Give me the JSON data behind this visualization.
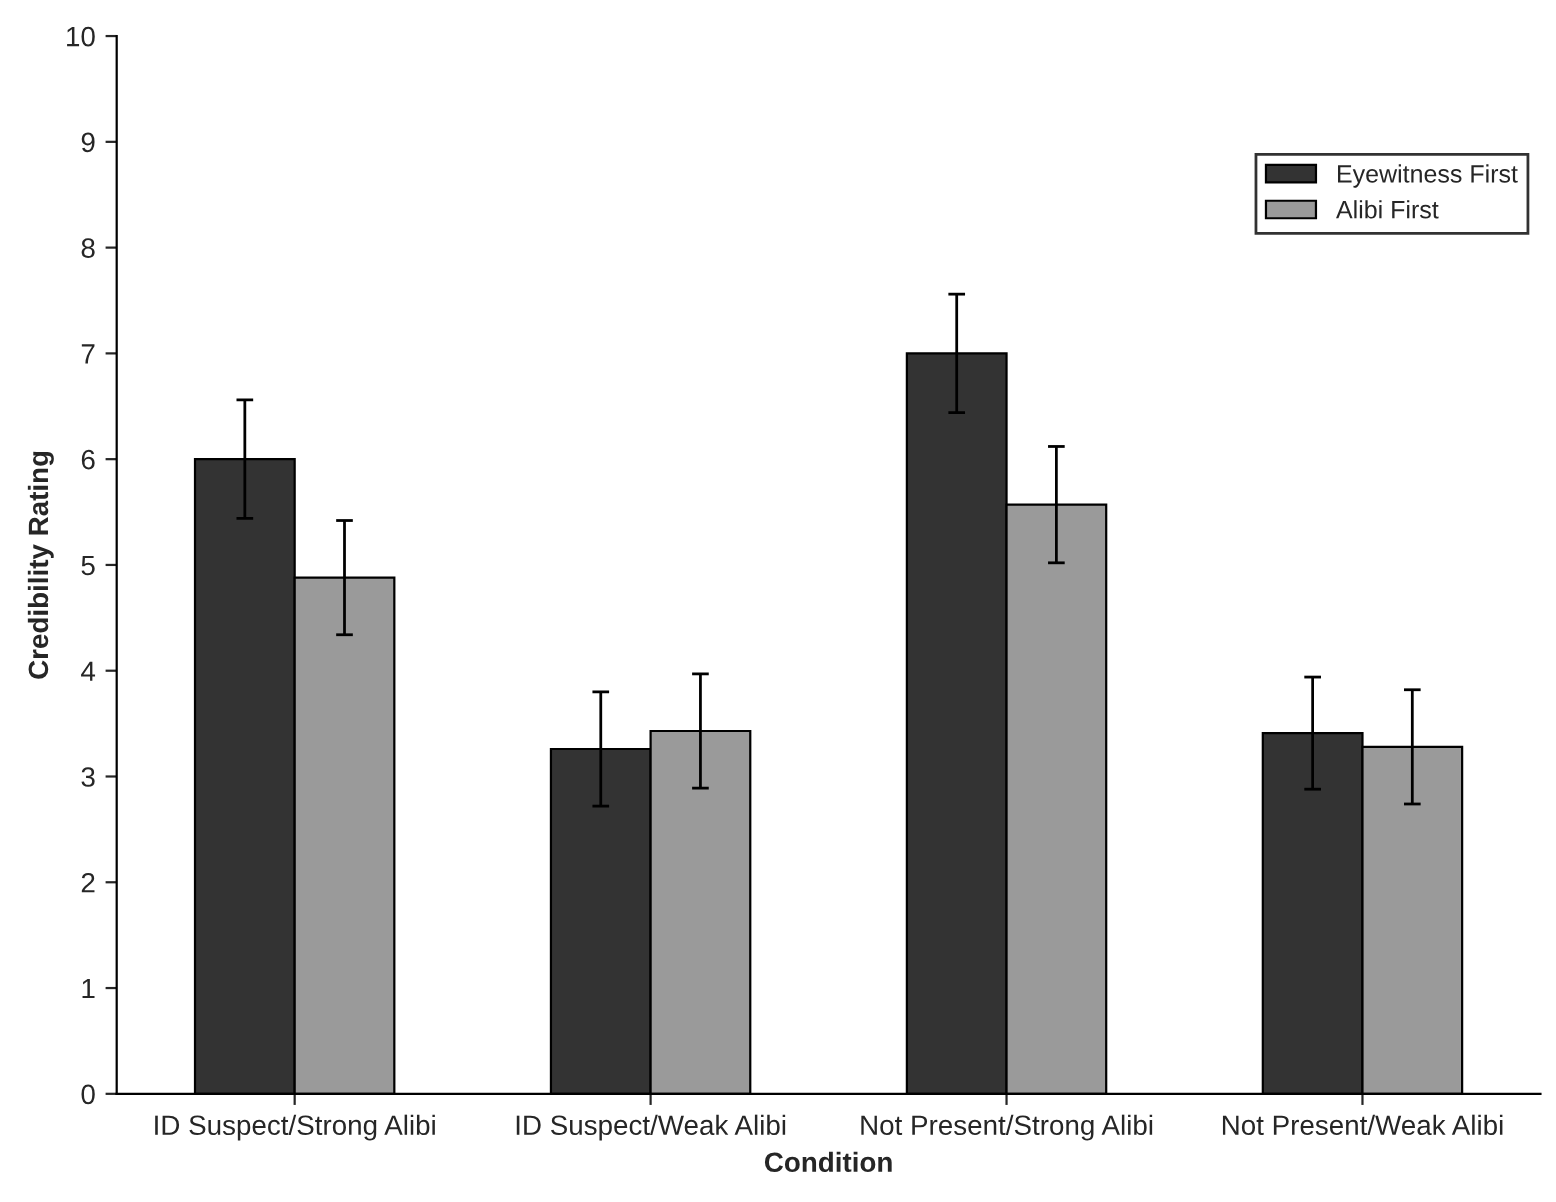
{
  "chart_data": {
    "type": "bar",
    "categories": [
      "ID Suspect/Strong Alibi",
      "ID Suspect/Weak Alibi",
      "Not Present/Strong Alibi",
      "Not Present/Weak Alibi"
    ],
    "series": [
      {
        "name": "Eyewitness First",
        "color": "#333333",
        "values": [
          6.0,
          3.26,
          7.0,
          3.41
        ],
        "errors": [
          0.56,
          0.54,
          0.56,
          0.53
        ]
      },
      {
        "name": "Alibi First",
        "color": "#9a9a9a",
        "values": [
          4.88,
          3.43,
          5.57,
          3.28
        ],
        "errors": [
          0.54,
          0.54,
          0.55,
          0.54
        ]
      }
    ],
    "xlabel": "Condition",
    "ylabel": "Credibility Rating",
    "ylim": [
      0,
      10
    ],
    "yticks": [
      0,
      1,
      2,
      3,
      4,
      5,
      6,
      7,
      8,
      9,
      10
    ],
    "legend": "top right",
    "grid": false
  }
}
